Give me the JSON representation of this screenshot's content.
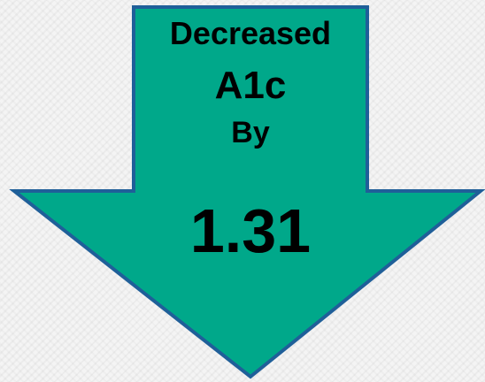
{
  "callout": {
    "line1": "Decreased",
    "line2": "A1c",
    "line3": "By",
    "value": "1.31"
  },
  "colors": {
    "arrow_fill": "#00a88a",
    "arrow_stroke": "#1f5f99",
    "background": "#f4f4f4",
    "text": "#000000"
  },
  "icons": {
    "arrow": "down-arrow-icon"
  }
}
